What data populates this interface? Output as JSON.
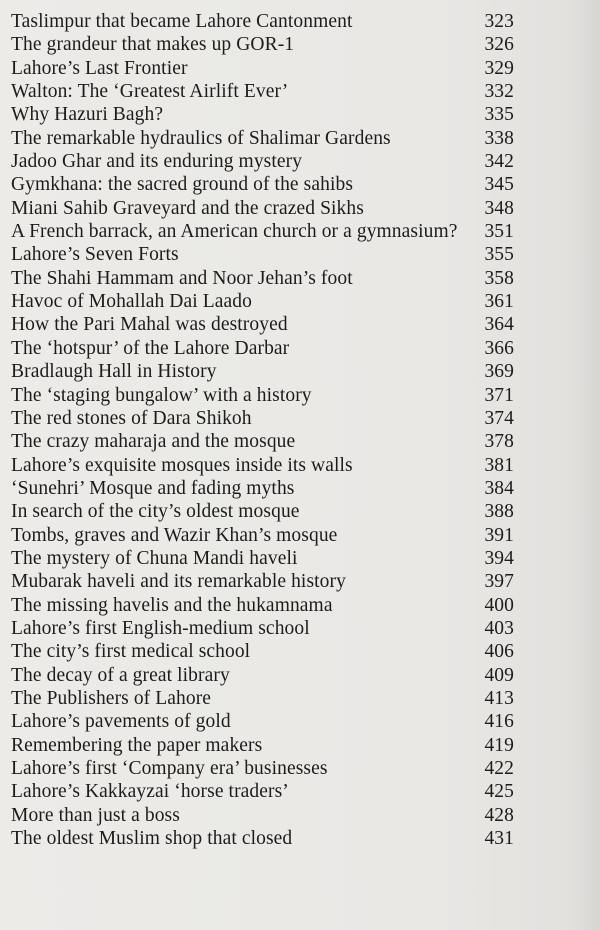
{
  "contents": [
    {
      "title": "Taslimpur that became Lahore Cantonment",
      "page": "323"
    },
    {
      "title": "The grandeur that makes up GOR-1",
      "page": "326"
    },
    {
      "title": "Lahore’s Last Frontier",
      "page": "329"
    },
    {
      "title": "Walton: The ‘Greatest Airlift Ever’",
      "page": "332"
    },
    {
      "title": "Why Hazuri Bagh?",
      "page": "335"
    },
    {
      "title": "The remarkable hydraulics of Shalimar Gardens",
      "page": "338"
    },
    {
      "title": "Jadoo Ghar and its enduring mystery",
      "page": "342"
    },
    {
      "title": "Gymkhana: the sacred ground of the sahibs",
      "page": "345"
    },
    {
      "title": "Miani Sahib Graveyard and the crazed Sikhs",
      "page": "348"
    },
    {
      "title": "A French barrack, an American church or a gymnasium?",
      "page": "351"
    },
    {
      "title": "Lahore’s Seven Forts",
      "page": "355"
    },
    {
      "title": "The Shahi Hammam and Noor Jehan’s foot",
      "page": "358"
    },
    {
      "title": "Havoc of Mohallah Dai Laado",
      "page": "361"
    },
    {
      "title": "How the Pari Mahal was destroyed",
      "page": "364"
    },
    {
      "title": "The ‘hotspur’ of the Lahore Darbar",
      "page": "366"
    },
    {
      "title": "Bradlaugh Hall in History",
      "page": "369"
    },
    {
      "title": "The ‘staging bungalow’ with a history",
      "page": "371"
    },
    {
      "title": "The red stones of Dara Shikoh",
      "page": "374"
    },
    {
      "title": "The crazy maharaja and the mosque",
      "page": "378"
    },
    {
      "title": "Lahore’s exquisite mosques inside its walls",
      "page": "381"
    },
    {
      "title": "‘Sunehri’ Mosque and fading myths",
      "page": "384"
    },
    {
      "title": "In search of the city’s oldest mosque",
      "page": "388"
    },
    {
      "title": "Tombs, graves and Wazir Khan’s mosque",
      "page": "391"
    },
    {
      "title": "The mystery of Chuna Mandi haveli",
      "page": "394"
    },
    {
      "title": "Mubarak haveli and its remarkable history",
      "page": "397"
    },
    {
      "title": "The missing havelis and the hukamnama",
      "page": "400"
    },
    {
      "title": "Lahore’s first English-medium school",
      "page": "403"
    },
    {
      "title": "The city’s first medical school",
      "page": "406"
    },
    {
      "title": "The decay of a great library",
      "page": "409"
    },
    {
      "title": "The Publishers of Lahore",
      "page": "413"
    },
    {
      "title": "Lahore’s pavements of gold",
      "page": "416"
    },
    {
      "title": "Remembering the paper makers",
      "page": "419"
    },
    {
      "title": "Lahore’s first ‘Company era’ businesses",
      "page": "422"
    },
    {
      "title": "Lahore’s Kakkayzai ‘horse traders’",
      "page": "425"
    },
    {
      "title": "More than just a boss",
      "page": "428"
    },
    {
      "title": "The oldest Muslim shop that closed",
      "page": "431"
    }
  ]
}
